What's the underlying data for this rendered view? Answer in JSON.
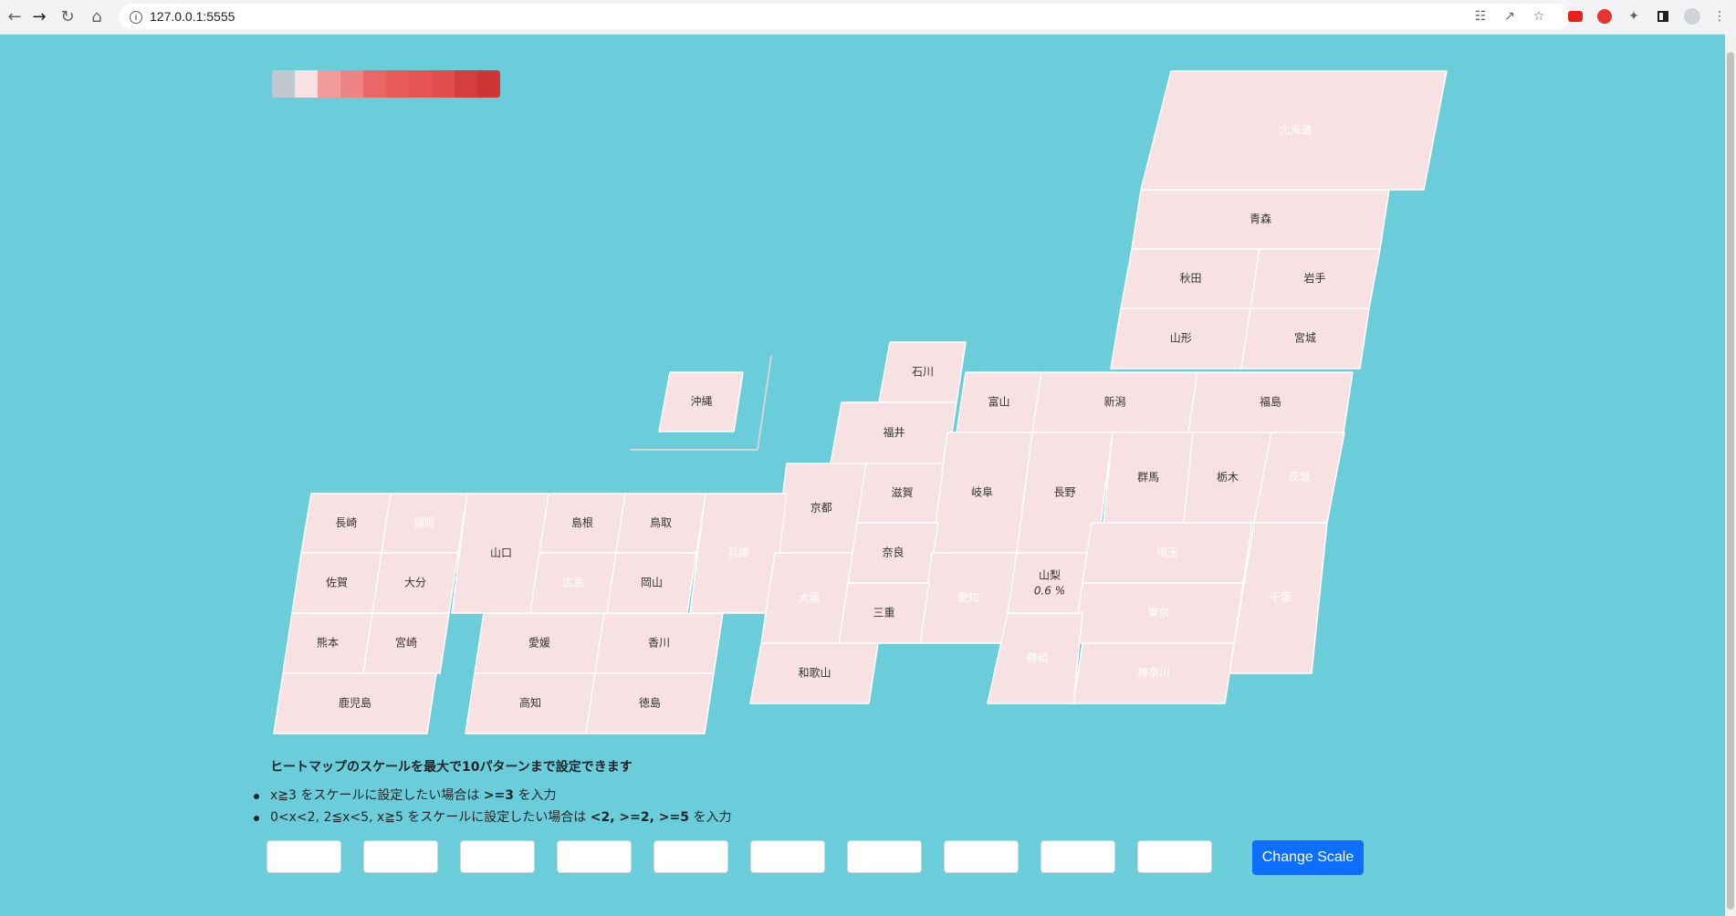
{
  "browser": {
    "url": "127.0.0.1:5555",
    "nav_icons": [
      "back-arrow-icon",
      "forward-arrow-icon",
      "reload-icon",
      "home-icon"
    ],
    "ext_icons": [
      "translate-icon",
      "share-icon",
      "bookmark-star-icon",
      "youtube-ext-icon",
      "adblock-ext-icon",
      "puzzle-extensions-icon",
      "sidepanel-icon",
      "profile-avatar-icon",
      "kebab-menu-icon"
    ]
  },
  "legend": {
    "colors": [
      "#c0c7ce",
      "#f8e1e2",
      "#f19c9b",
      "#ee8585",
      "#ec6868",
      "#e95a5a",
      "#e55454",
      "#df4d4d",
      "#d43e3e",
      "#ce3536"
    ]
  },
  "colors": {
    "gray": "#c0c7ce",
    "pale": "#f8e1e2",
    "pink": "#f19c9b",
    "salmon": "#ee8585",
    "red1": "#ec6868",
    "red2": "#e45858",
    "red3": "#df5151",
    "deep": "#ce3536"
  },
  "map": {
    "prefectures": [
      {
        "id": "hokkaido",
        "label": "北海道"
      },
      {
        "id": "aomori",
        "label": "青森"
      },
      {
        "id": "akita",
        "label": "秋田"
      },
      {
        "id": "iwate",
        "label": "岩手"
      },
      {
        "id": "yamagata",
        "label": "山形"
      },
      {
        "id": "miyagi",
        "label": "宮城"
      },
      {
        "id": "ishikawa",
        "label": "石川"
      },
      {
        "id": "toyama",
        "label": "富山"
      },
      {
        "id": "niigata",
        "label": "新潟"
      },
      {
        "id": "fukushima",
        "label": "福島"
      },
      {
        "id": "okinawa",
        "label": "沖縄"
      },
      {
        "id": "fukui",
        "label": "福井"
      },
      {
        "id": "kyoto",
        "label": "京都"
      },
      {
        "id": "shiga",
        "label": "滋賀"
      },
      {
        "id": "gifu",
        "label": "岐阜"
      },
      {
        "id": "nagano",
        "label": "長野"
      },
      {
        "id": "gunma",
        "label": "群馬"
      },
      {
        "id": "tochigi",
        "label": "栃木"
      },
      {
        "id": "ibaraki",
        "label": "茨城"
      },
      {
        "id": "nagasaki",
        "label": "長崎"
      },
      {
        "id": "fukuoka",
        "label": "福岡"
      },
      {
        "id": "yamaguchi",
        "label": "山口"
      },
      {
        "id": "shimane",
        "label": "島根"
      },
      {
        "id": "tottori",
        "label": "鳥取"
      },
      {
        "id": "hyogo",
        "label": "兵庫"
      },
      {
        "id": "saga",
        "label": "佐賀"
      },
      {
        "id": "oita",
        "label": "大分"
      },
      {
        "id": "hiroshima",
        "label": "広島"
      },
      {
        "id": "okayama",
        "label": "岡山"
      },
      {
        "id": "osaka",
        "label": "大阪"
      },
      {
        "id": "nara",
        "label": "奈良"
      },
      {
        "id": "aichi",
        "label": "愛知"
      },
      {
        "id": "yamanashi",
        "label": "山梨",
        "sub": "0.6 %"
      },
      {
        "id": "saitama",
        "label": "埼玉"
      },
      {
        "id": "tokyo",
        "label": "東京"
      },
      {
        "id": "chiba",
        "label": "千葉"
      },
      {
        "id": "kumamoto",
        "label": "熊本"
      },
      {
        "id": "miyazaki",
        "label": "宮崎"
      },
      {
        "id": "ehime",
        "label": "愛媛"
      },
      {
        "id": "kagawa",
        "label": "香川"
      },
      {
        "id": "mie",
        "label": "三重"
      },
      {
        "id": "shizuoka",
        "label": "静岡"
      },
      {
        "id": "kanagawa",
        "label": "神奈川"
      },
      {
        "id": "kagoshima",
        "label": "鹿児島"
      },
      {
        "id": "kochi",
        "label": "高知"
      },
      {
        "id": "tokushima",
        "label": "徳島"
      },
      {
        "id": "wakayama",
        "label": "和歌山"
      }
    ]
  },
  "help": {
    "title": "ヒートマップのスケールを最大で10パターンまで設定できます",
    "item1_pre": "x≧3 をスケールに設定したい場合は ",
    "item1_code": ">=3",
    "item1_post": " を入力",
    "item2_pre": "0<x<2, 2≦x<5, x≧5 をスケールに設定したい場合は ",
    "item2_code": "<2, >=2, >=5",
    "item2_post": " を入力"
  },
  "scale_inputs": [
    "",
    "",
    "",
    "",
    "",
    "",
    "",
    "",
    "",
    ""
  ],
  "button": {
    "label": "Change Scale"
  }
}
